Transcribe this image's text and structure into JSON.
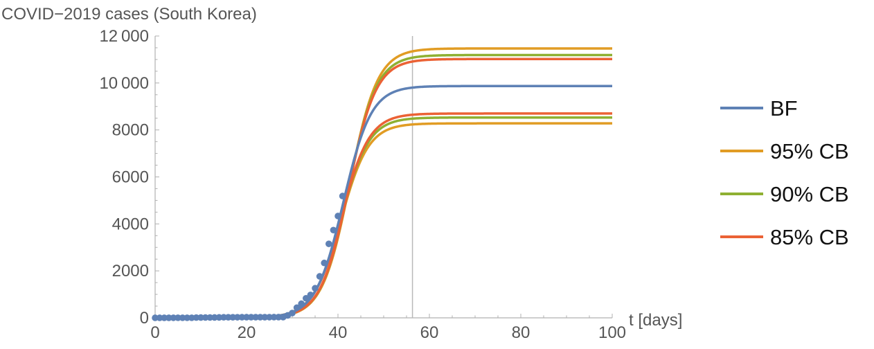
{
  "chart_data": {
    "type": "line",
    "title": "COVID−2019 cases (South Korea)",
    "xlabel": "t [days]",
    "ylabel": "",
    "xlim": [
      0,
      100
    ],
    "ylim": [
      0,
      12000
    ],
    "x_ticks": [
      0,
      20,
      40,
      60,
      80,
      100
    ],
    "x_tick_labels": [
      "0",
      "20",
      "40",
      "60",
      "80",
      "100"
    ],
    "y_ticks": [
      0,
      2000,
      4000,
      6000,
      8000,
      10000,
      12000
    ],
    "y_tick_labels": [
      "0",
      "2000",
      "4000",
      "6000",
      "8000",
      "10 000",
      "12 000"
    ],
    "vertical_line_x": 56.3,
    "grid": false,
    "legend_position": "right",
    "legend": [
      {
        "label": "BF",
        "color": "#5e81b5"
      },
      {
        "label": "95% CB",
        "color": "#e19c24"
      },
      {
        "label": "90% CB",
        "color": "#8fb032"
      },
      {
        "label": "85% CB",
        "color": "#eb6235"
      }
    ],
    "curves": [
      {
        "legend_index": 0,
        "color": "#5e81b5",
        "K": 9870,
        "t0": 41.2,
        "r": 0.33
      },
      {
        "legend_index": 1,
        "color": "#e19c24",
        "K": 11470,
        "t0": 42.6,
        "r": 0.33
      },
      {
        "legend_index": 1,
        "color": "#e19c24",
        "K": 8280,
        "t0": 40.6,
        "r": 0.33
      },
      {
        "legend_index": 2,
        "color": "#8fb032",
        "K": 11190,
        "t0": 42.4,
        "r": 0.33
      },
      {
        "legend_index": 2,
        "color": "#8fb032",
        "K": 8530,
        "t0": 40.7,
        "r": 0.33
      },
      {
        "legend_index": 3,
        "color": "#eb6235",
        "K": 11020,
        "t0": 42.3,
        "r": 0.33
      },
      {
        "legend_index": 3,
        "color": "#eb6235",
        "K": 8700,
        "t0": 40.8,
        "r": 0.33
      }
    ],
    "observed_points": {
      "color": "#5e81b5",
      "x": [
        0,
        1,
        2,
        3,
        4,
        5,
        6,
        7,
        8,
        9,
        10,
        11,
        12,
        13,
        14,
        15,
        16,
        17,
        18,
        19,
        20,
        21,
        22,
        23,
        24,
        25,
        26,
        27,
        28,
        29,
        30,
        31,
        32,
        33,
        34,
        35,
        36,
        37,
        38,
        39,
        40,
        41
      ],
      "y": [
        1,
        1,
        2,
        2,
        3,
        4,
        4,
        4,
        4,
        11,
        12,
        15,
        15,
        16,
        19,
        23,
        24,
        24,
        25,
        27,
        28,
        28,
        28,
        28,
        28,
        29,
        30,
        31,
        31,
        104,
        204,
        433,
        602,
        833,
        977,
        1261,
        1766,
        2337,
        3150,
        3736,
        4335,
        5186
      ]
    }
  }
}
